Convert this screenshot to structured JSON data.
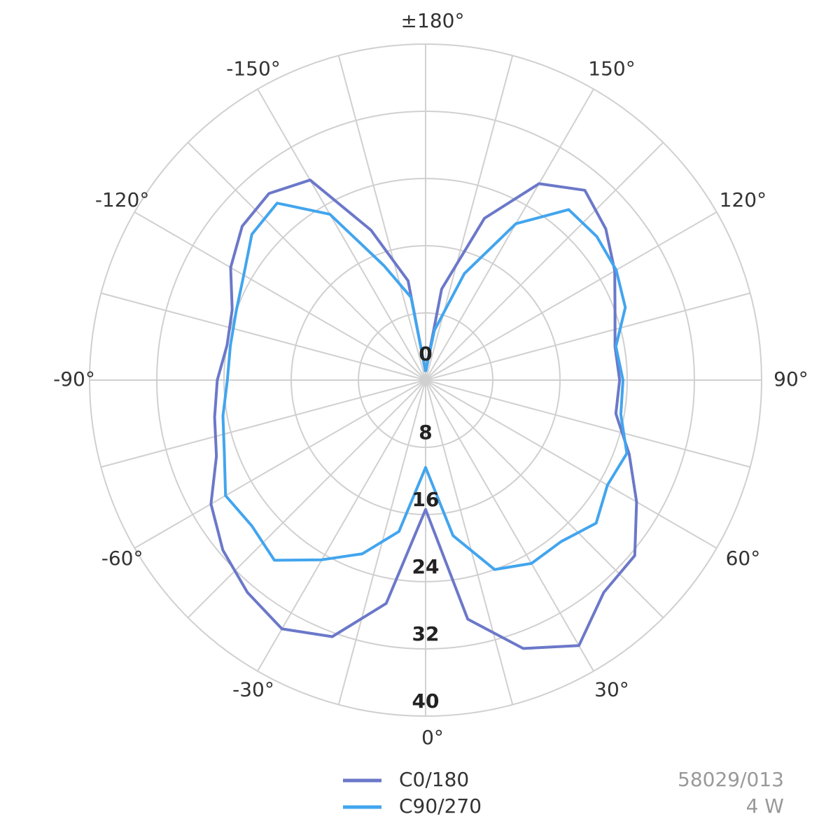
{
  "chart_data": {
    "type": "polar",
    "x": [
      -180,
      -170,
      -160,
      -150,
      -140,
      -130,
      -120,
      -110,
      -100,
      -90,
      -80,
      -70,
      -60,
      -50,
      -40,
      -30,
      -20,
      -10,
      0,
      10,
      20,
      30,
      40,
      50,
      60,
      70,
      80,
      90,
      100,
      110,
      120,
      130,
      140,
      150,
      160,
      170,
      180
    ],
    "series": [
      {
        "name": "C0/180",
        "color": "#6b78c9",
        "values": [
          1,
          12,
          19,
          27.5,
          29,
          28.5,
          26.8,
          24.5,
          24,
          24.8,
          25.5,
          26.5,
          29.5,
          31.5,
          33,
          34.2,
          32.5,
          27,
          15.4,
          28.9,
          34,
          36.5,
          33,
          32.5,
          29,
          25.8,
          23,
          23.1,
          22.9,
          24,
          26,
          28,
          29.5,
          27,
          20.5,
          11,
          1
        ]
      },
      {
        "name": "C90/270",
        "color": "#42a5ee",
        "values": [
          1,
          10,
          14.5,
          22.8,
          27.5,
          27,
          25,
          24,
          23.6,
          23.6,
          24.5,
          25.5,
          27.5,
          27,
          28,
          24.7,
          22,
          18.3,
          10.4,
          18.8,
          24,
          25.2,
          25.1,
          26.5,
          25,
          25.5,
          23.6,
          23.5,
          23,
          25.3,
          26.2,
          26.6,
          26.5,
          21.5,
          13.5,
          6,
          1
        ]
      }
    ],
    "ylim": [
      0,
      40
    ],
    "yticks": [
      0,
      8,
      16,
      24,
      32,
      40
    ],
    "xticks": [
      {
        "value": 180,
        "label": "±180°"
      },
      {
        "value": -150,
        "label": "-150°"
      },
      {
        "value": -120,
        "label": "-120°"
      },
      {
        "value": -90,
        "label": "-90°"
      },
      {
        "value": -60,
        "label": "-60°"
      },
      {
        "value": -30,
        "label": "-30°"
      },
      {
        "value": 0,
        "label": "0°"
      },
      {
        "value": 30,
        "label": "30°"
      },
      {
        "value": 60,
        "label": "60°"
      },
      {
        "value": 90,
        "label": "90°"
      },
      {
        "value": 120,
        "label": "120°"
      },
      {
        "value": 150,
        "label": "150°"
      }
    ],
    "xminorticks": [
      -165,
      -135,
      -105,
      -75,
      -45,
      -15,
      15,
      45,
      75,
      105,
      135,
      165
    ],
    "grid": true,
    "annotations": [
      "58029/013",
      "4 W"
    ]
  }
}
